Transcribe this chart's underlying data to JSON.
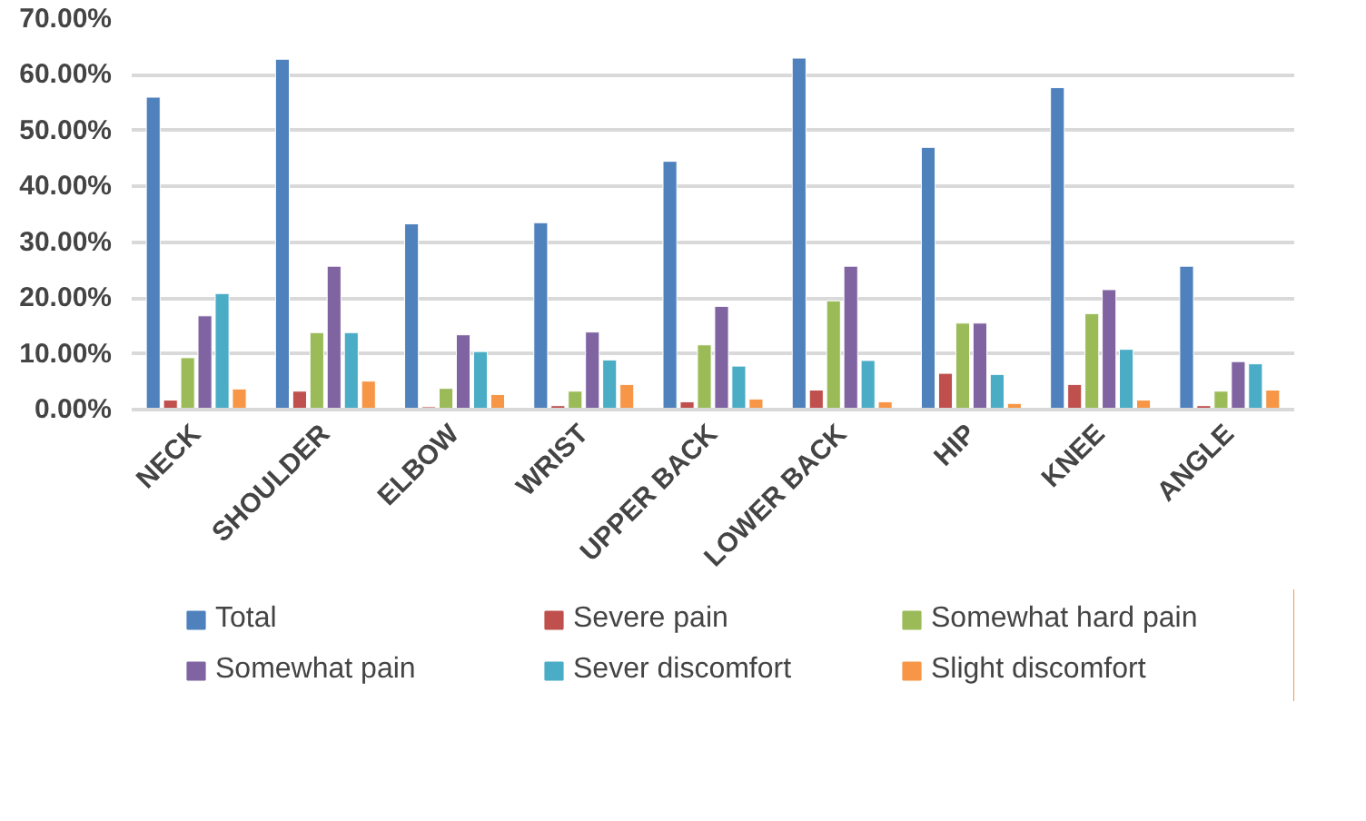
{
  "chart_data": {
    "type": "bar",
    "categories": [
      "NECK",
      "SHOULDER",
      "ELBOW",
      "WRIST",
      "UPPER BACK",
      "LOWER BACK",
      "HIP",
      "KNEE",
      "ANGLE"
    ],
    "series": [
      {
        "name": "Total",
        "color": "#4f81bd",
        "values": [
          56,
          62.8,
          33.3,
          33.5,
          44.5,
          63,
          47,
          57.7,
          25.7
        ]
      },
      {
        "name": "Severe pain",
        "color": "#c0504d",
        "values": [
          1.7,
          3.3,
          0.5,
          0.7,
          1.4,
          3.5,
          6.5,
          4.5,
          0.7
        ]
      },
      {
        "name": "Somewhat hard pain",
        "color": "#9bbb59",
        "values": [
          9.3,
          13.8,
          3.8,
          3.3,
          11.6,
          19.5,
          15.5,
          17.2,
          3.3
        ]
      },
      {
        "name": "Somewhat pain",
        "color": "#8064a2",
        "values": [
          16.8,
          25.7,
          13.4,
          13.9,
          18.5,
          25.7,
          15.5,
          21.5,
          8.6
        ]
      },
      {
        "name": "Sever discomfort",
        "color": "#4bacc6",
        "values": [
          20.8,
          13.8,
          10.4,
          8.9,
          7.8,
          8.8,
          6.3,
          10.8,
          8.2
        ]
      },
      {
        "name": "Slight discomfort",
        "color": "#f79646",
        "values": [
          3.7,
          5.1,
          2.7,
          4.5,
          1.9,
          1.4,
          1.1,
          1.7,
          3.5
        ]
      }
    ],
    "ylim": [
      0,
      70
    ],
    "yticks": [
      {
        "value": 0,
        "label": "0.00%"
      },
      {
        "value": 10,
        "label": "10.00%"
      },
      {
        "value": 20,
        "label": "20.00%"
      },
      {
        "value": 30,
        "label": "30.00%"
      },
      {
        "value": 40,
        "label": "40.00%"
      },
      {
        "value": 50,
        "label": "50.00%"
      },
      {
        "value": 60,
        "label": "60.00%"
      },
      {
        "value": 70,
        "label": "70.00%"
      }
    ],
    "grid": "y",
    "legend": "bottom"
  }
}
